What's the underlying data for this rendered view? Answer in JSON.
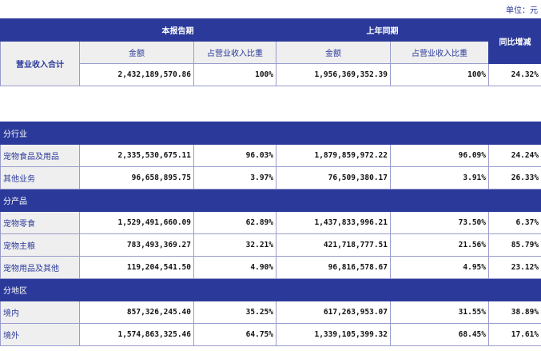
{
  "unit_label": "单位：元",
  "summary": {
    "current_period": "本报告期",
    "prior_period": "上年同期",
    "yoy_change": "同比增减",
    "amount": "金额",
    "share": "占营业收入比重",
    "row_label": "营业收入合计",
    "current_amount": "2,432,189,570.86",
    "current_share": "100%",
    "prior_amount": "1,956,369,352.39",
    "prior_share": "100%",
    "yoy": "24.32%"
  },
  "sections": [
    {
      "title": "分行业",
      "rows": [
        {
          "label": "宠物食品及用品",
          "cur": "2,335,530,675.11",
          "cur_share": "96.03%",
          "prior": "1,879,859,972.22",
          "prior_share": "96.09%",
          "yoy": "24.24%"
        },
        {
          "label": "其他业务",
          "cur": "96,658,895.75",
          "cur_share": "3.97%",
          "prior": "76,509,380.17",
          "prior_share": "3.91%",
          "yoy": "26.33%"
        }
      ]
    },
    {
      "title": "分产品",
      "rows": [
        {
          "label": "宠物零食",
          "cur": "1,529,491,660.09",
          "cur_share": "62.89%",
          "prior": "1,437,833,996.21",
          "prior_share": "73.50%",
          "yoy": "6.37%"
        },
        {
          "label": "宠物主粮",
          "cur": "783,493,369.27",
          "cur_share": "32.21%",
          "prior": "421,718,777.51",
          "prior_share": "21.56%",
          "yoy": "85.79%"
        },
        {
          "label": "宠物用品及其他",
          "cur": "119,204,541.50",
          "cur_share": "4.90%",
          "prior": "96,816,578.67",
          "prior_share": "4.95%",
          "yoy": "23.12%"
        }
      ]
    },
    {
      "title": "分地区",
      "rows": [
        {
          "label": "境内",
          "cur": "857,326,245.40",
          "cur_share": "35.25%",
          "prior": "617,263,953.07",
          "prior_share": "31.55%",
          "yoy": "38.89%"
        },
        {
          "label": "境外",
          "cur": "1,574,863,325.46",
          "cur_share": "64.75%",
          "prior": "1,339,105,399.32",
          "prior_share": "68.45%",
          "yoy": "17.61%"
        }
      ]
    }
  ]
}
